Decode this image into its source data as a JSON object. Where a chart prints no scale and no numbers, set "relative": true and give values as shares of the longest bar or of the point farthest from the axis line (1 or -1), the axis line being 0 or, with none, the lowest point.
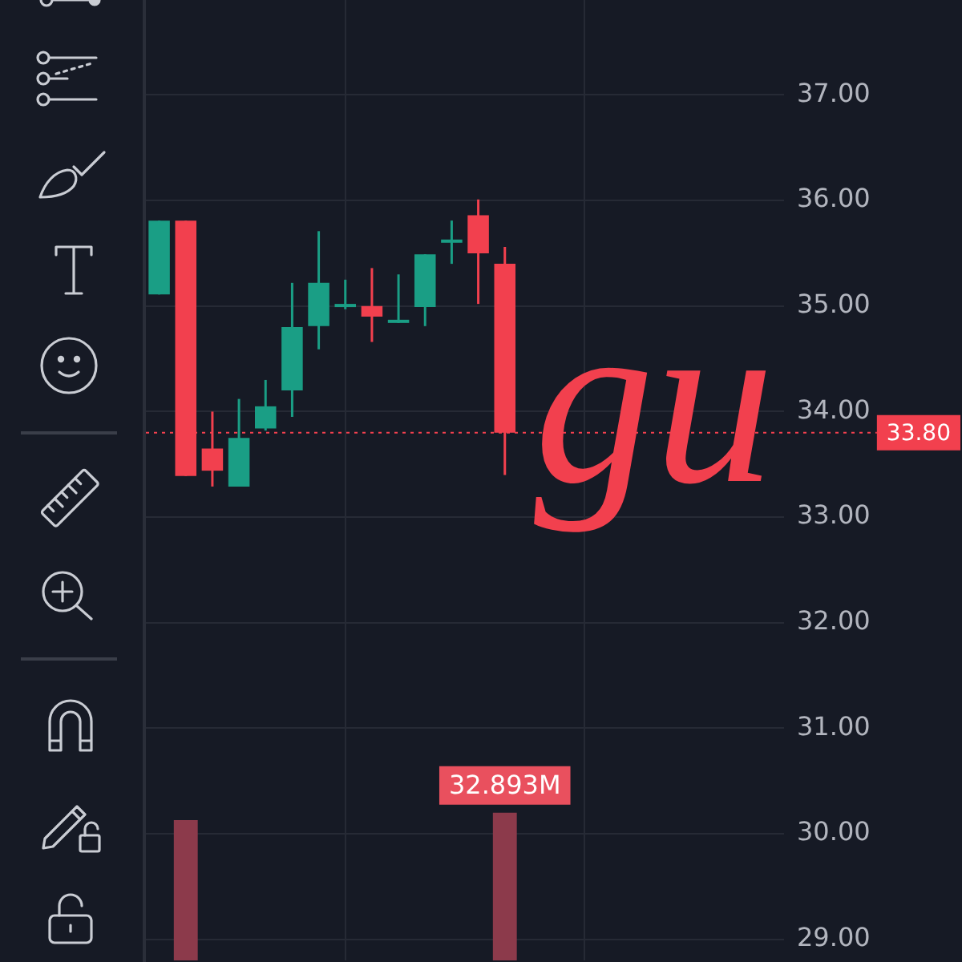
{
  "chart_data": [
    {
      "type": "candlestick",
      "categories": [
        null,
        null,
        null,
        null,
        null,
        null,
        null,
        null,
        null,
        null,
        null,
        null,
        null,
        null,
        null,
        null,
        null,
        null,
        null,
        null,
        null,
        null,
        null,
        null
      ],
      "ohlc": [
        [
          35.11,
          35.81,
          35.11,
          35.81
        ],
        [
          35.81,
          35.81,
          33.39,
          33.39
        ],
        [
          33.65,
          34.0,
          33.29,
          33.44
        ],
        [
          33.29,
          34.12,
          33.29,
          33.75
        ],
        [
          33.84,
          34.3,
          33.82,
          34.05
        ],
        [
          34.2,
          35.22,
          33.95,
          34.8
        ],
        [
          34.81,
          35.71,
          34.59,
          35.22
        ],
        [
          34.99,
          35.25,
          34.97,
          35.0
        ],
        [
          35.0,
          35.36,
          34.66,
          34.9
        ],
        [
          34.84,
          35.3,
          34.84,
          34.86
        ],
        [
          34.99,
          35.49,
          34.81,
          35.49
        ],
        [
          35.6,
          35.81,
          35.4,
          35.62
        ],
        [
          35.86,
          36.01,
          35.02,
          35.5
        ],
        [
          35.4,
          35.56,
          33.4,
          33.8
        ],
        null,
        null,
        null,
        null,
        null,
        null,
        null,
        null,
        null,
        null
      ],
      "colors": [
        "#1a9e85",
        "#f2404e",
        "#f2404e",
        "#1a9e85",
        "#1a9e85",
        "#1a9e85",
        "#1a9e85",
        "#1a9e85",
        "#f2404e",
        "#1a9e85",
        "#1a9e85",
        "#1a9e85",
        "#f2404e",
        "#f2404e",
        null,
        null,
        null,
        null,
        null,
        null,
        null,
        null,
        null,
        null
      ],
      "ylim": [
        28.8,
        37.9
      ],
      "yticks": [
        {
          "value": 29,
          "label": "29.00"
        },
        {
          "value": 30,
          "label": "30.00"
        },
        {
          "value": 31,
          "label": "31.00"
        },
        {
          "value": 32,
          "label": "32.00"
        },
        {
          "value": 33,
          "label": "33.00"
        },
        {
          "value": 34,
          "label": "34.00"
        },
        {
          "value": 35,
          "label": "35.00"
        },
        {
          "value": 36,
          "label": "36.00"
        },
        {
          "value": 37,
          "label": "37.00"
        }
      ],
      "ref_lines": [
        {
          "axis": "y",
          "value": 33.8,
          "label": "33.80",
          "color": "#f2404e",
          "line_style": "dotted"
        }
      ],
      "annotations": [
        "gu"
      ],
      "grid": true,
      "legend": false,
      "tick_labels": "y"
    },
    {
      "type": "bar",
      "relative": true,
      "categories": [
        null,
        null,
        null,
        null,
        null,
        null,
        null,
        null,
        null,
        null,
        null,
        null,
        null,
        null,
        null,
        null,
        null,
        null,
        null,
        null,
        null,
        null,
        null,
        null
      ],
      "values": [
        null,
        0.95,
        null,
        null,
        null,
        null,
        null,
        null,
        null,
        null,
        null,
        null,
        null,
        1,
        null,
        null,
        null,
        null,
        null,
        null,
        null,
        null,
        null,
        null
      ],
      "color": "#8c3a4b",
      "annotations": [
        "32.893M"
      ],
      "tick_labels": false
    }
  ]
}
